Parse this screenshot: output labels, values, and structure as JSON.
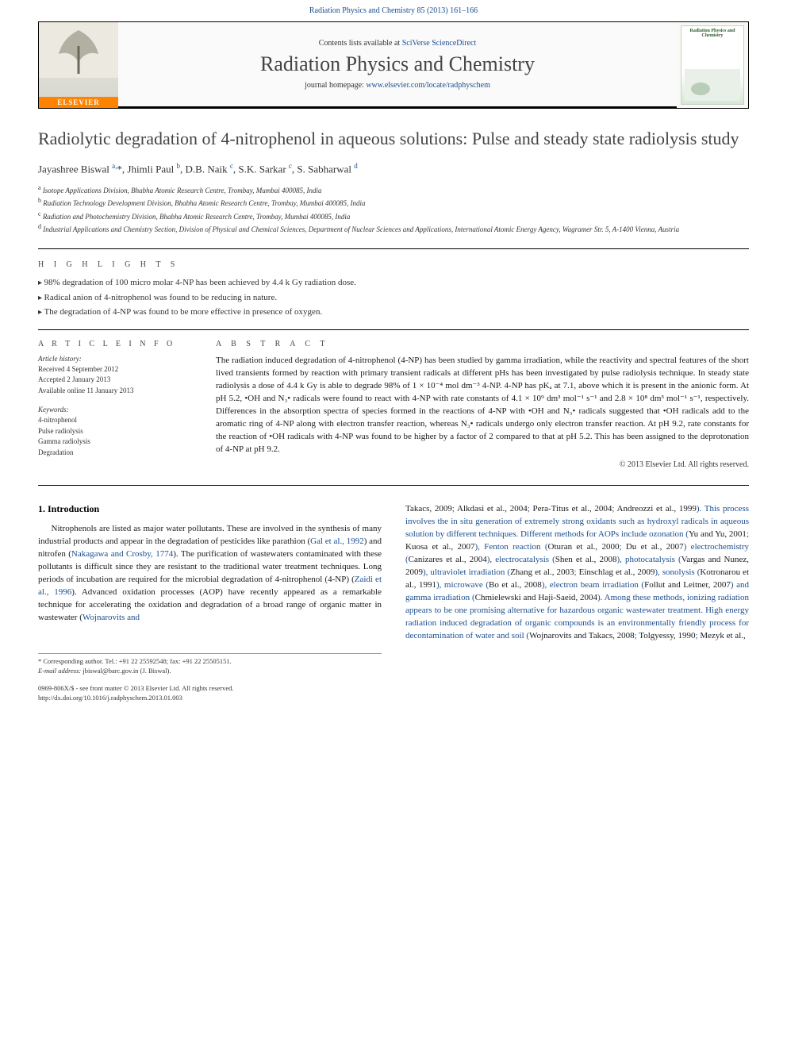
{
  "header": {
    "citation": "Radiation Physics and Chemistry 85 (2013) 161–166",
    "contents_prefix": "Contents lists available at ",
    "contents_link": "SciVerse ScienceDirect",
    "journal_name": "Radiation Physics and Chemistry",
    "homepage_prefix": "journal homepage: ",
    "homepage_url": "www.elsevier.com/locate/radphyschem",
    "publisher_logo_text": "ELSEVIER",
    "cover_thumb_title": "Radiation Physics and Chemistry"
  },
  "article": {
    "title": "Radiolytic degradation of 4-nitrophenol in aqueous solutions: Pulse and steady state radiolysis study",
    "authors_html": "Jayashree Biswal <sup>a,</sup>*, Jhimli Paul <sup>b</sup>, D.B. Naik <sup>c</sup>, S.K. Sarkar <sup>c</sup>, S. Sabharwal <sup>d</sup>",
    "affiliations": [
      "a Isotope Applications Division, Bhabha Atomic Research Centre, Trombay, Mumbai 400085, India",
      "b Radiation Technology Development Division, Bhabha Atomic Research Centre, Trombay, Mumbai 400085, India",
      "c Radiation and Photochemistry Division, Bhabha Atomic Research Centre, Trombay, Mumbai 400085, India",
      "d Industrial Applications and Chemistry Section, Division of Physical and Chemical Sciences, Department of Nuclear Sciences and Applications, International Atomic Energy Agency, Wagramer Str. 5, A-1400 Vienna, Austria"
    ]
  },
  "highlights": {
    "label": "H I G H L I G H T S",
    "items": [
      "98% degradation of 100 micro molar 4-NP has been achieved by 4.4 k Gy radiation dose.",
      "Radical anion of 4-nitrophenol was found to be reducing in nature.",
      "The degradation of 4-NP was found to be more effective in presence of oxygen."
    ]
  },
  "article_info": {
    "label": "A R T I C L E  I N F O",
    "history_label": "Article history:",
    "history": [
      "Received 4 September 2012",
      "Accepted 2 January 2013",
      "Available online 11 January 2013"
    ],
    "keywords_label": "Keywords:",
    "keywords": [
      "4-nitrophenol",
      "Pulse radiolysis",
      "Gamma radiolysis",
      "Degradation"
    ]
  },
  "abstract": {
    "label": "A B S T R A C T",
    "text": "The radiation induced degradation of 4-nitrophenol (4-NP) has been studied by gamma irradiation, while the reactivity and spectral features of the short lived transients formed by reaction with primary transient radicals at different pHs has been investigated by pulse radiolysis technique. In steady state radiolysis a dose of 4.4 k Gy is able to degrade 98% of 1 × 10⁻⁴ mol dm⁻³ 4-NP. 4-NP has pKₐ at 7.1, above which it is present in the anionic form. At pH 5.2, •OH and N₃• radicals were found to react with 4-NP with rate constants of 4.1 × 10⁹ dm³ mol⁻¹ s⁻¹ and 2.8 × 10⁸ dm³ mol⁻¹ s⁻¹, respectively. Differences in the absorption spectra of species formed in the reactions of 4-NP with •OH and N₃• radicals suggested that •OH radicals add to the aromatic ring of 4-NP along with electron transfer reaction, whereas N₃• radicals undergo only electron transfer reaction. At pH 9.2, rate constants for the reaction of •OH radicals with 4-NP was found to be higher by a factor of 2 compared to that at pH 5.2. This has been assigned to the deprotonation of 4-NP at pH 9.2.",
    "copyright": "© 2013 Elsevier Ltd. All rights reserved."
  },
  "body": {
    "section_heading": "1.  Introduction",
    "left_paragraph_parts": [
      "Nitrophenols are listed as major water pollutants. These are involved in the synthesis of many industrial products and appear in the degradation of pesticides like parathion (",
      "Gal et al., 1992",
      ") and nitrofen (",
      "Nakagawa and Crosby, 1774",
      "). The purification of wastewaters contaminated with these pollutants is difficult since they are resistant to the traditional water treatment techniques. Long periods of incubation are required for the microbial degradation of 4-nitrophenol (4-NP) (",
      "Zaidi et al., 1996",
      "). Advanced oxidation processes (AOP) have recently appeared as a remarkable technique for accelerating the oxidation and degradation of a broad range of organic matter in wastewater (",
      "Wojnarovits and"
    ],
    "right_paragraph_parts": [
      "Takacs, 2009",
      "; ",
      "Alkdasi et al., 2004",
      "; ",
      "Pera-Titus et al., 2004",
      "; ",
      "Andreozzi et al., 1999",
      "). This process involves the in situ generation of extremely strong oxidants such as hydroxyl radicals in aqueous solution by different techniques. Different methods for AOPs include ozonation (",
      "Yu and Yu, 2001",
      "; ",
      "Kuosa et al., 2007",
      "), Fenton reaction (",
      "Oturan et al., 2000",
      "; ",
      "Du et al., 2007",
      ") electrochemistry (",
      "Canizares et al., 2004",
      "), electrocatalysis (",
      "Shen et al., 2008",
      "), photocatalysis (",
      "Vargas and Nunez, 2009",
      "), ultraviolet irradiation (",
      "Zhang et al., 2003",
      "; ",
      "Einschlag et al., 2009",
      "), sonolysis (",
      "Kotronarou et al., 1991",
      "), microwave (",
      "Bo et al., 2008",
      "), electron beam irradiation (",
      "Follut and Leitner, 2007",
      ") and gamma irradiation (",
      "Chmielewski and Haji-Saeid, 2004",
      "). Among these methods, ionizing radiation appears to be one promising alternative for hazardous organic wastewater treatment. High energy radiation induced degradation of organic compounds is an environmentally friendly process for decontamination of water and soil (",
      "Wojnarovits and Takacs, 2008",
      "; ",
      "Tolgyessy, 1990",
      "; ",
      "Mezyk et al.,"
    ]
  },
  "footnote": {
    "corresponding": "* Corresponding author. Tel.: +91 22 25592548; fax: +91 22 25505151.",
    "email_label": "E-mail address:",
    "email": "jbiswal@barc.gov.in (J. Biswal).",
    "issn_line": "0969-806X/$ - see front matter © 2013 Elsevier Ltd. All rights reserved.",
    "doi_line": "http://dx.doi.org/10.1016/j.radphyschem.2013.01.003"
  },
  "colors": {
    "link": "#1a4d8f",
    "elsevier_orange": "#ff8200",
    "text": "#1a1a1a",
    "muted": "#333333"
  }
}
